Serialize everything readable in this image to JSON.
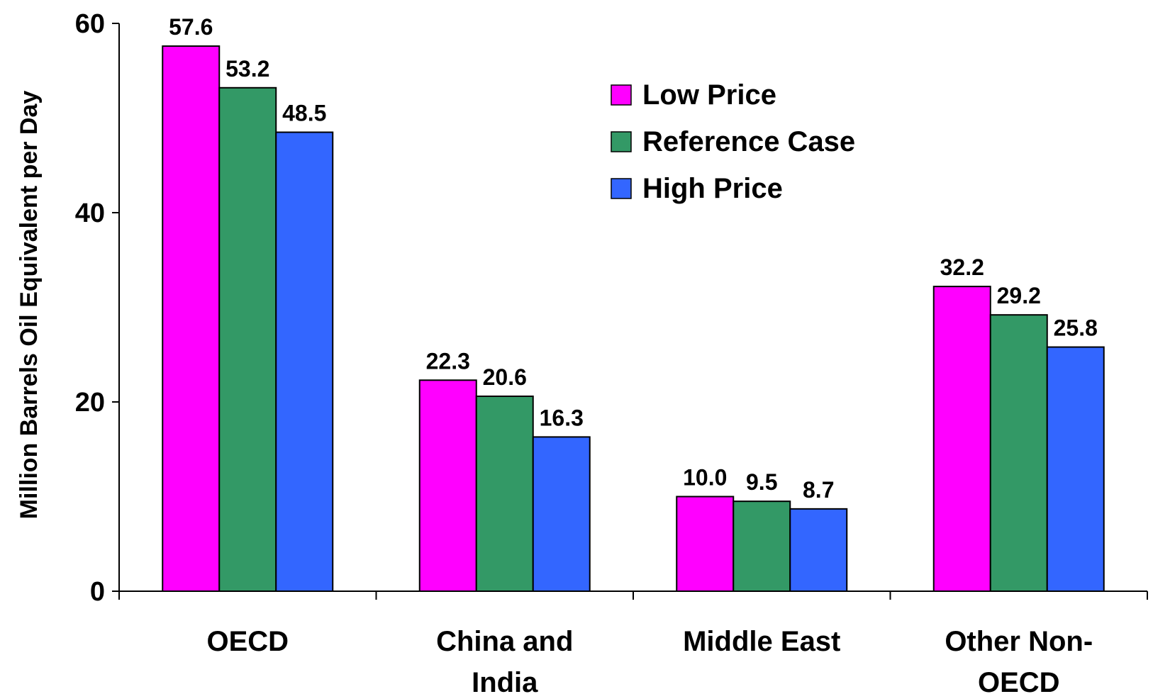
{
  "chart_data": {
    "type": "bar",
    "title": "",
    "xlabel": "",
    "ylabel": "Million Barrels Oil Equivalent per Day",
    "ylim": [
      0,
      60
    ],
    "yticks": [
      "0",
      "20",
      "40",
      "60"
    ],
    "grid": false,
    "legend_position": "top-right",
    "categories": [
      [
        "OECD"
      ],
      [
        "China and",
        "India"
      ],
      [
        "Middle East"
      ],
      [
        "Other Non-",
        "OECD"
      ]
    ],
    "series": [
      {
        "name": "Low Price",
        "color": "#ff00ff",
        "values": [
          57.6,
          22.3,
          10.0,
          32.2
        ],
        "labels": [
          "57.6",
          "22.3",
          "10.0",
          "32.2"
        ]
      },
      {
        "name": "Reference Case",
        "color": "#339966",
        "values": [
          53.2,
          20.6,
          9.5,
          29.2
        ],
        "labels": [
          "53.2",
          "20.6",
          "9.5",
          "29.2"
        ]
      },
      {
        "name": "High Price",
        "color": "#3366ff",
        "values": [
          48.5,
          16.3,
          8.7,
          25.8
        ],
        "labels": [
          "48.5",
          "16.3",
          "8.7",
          "25.8"
        ]
      }
    ]
  }
}
